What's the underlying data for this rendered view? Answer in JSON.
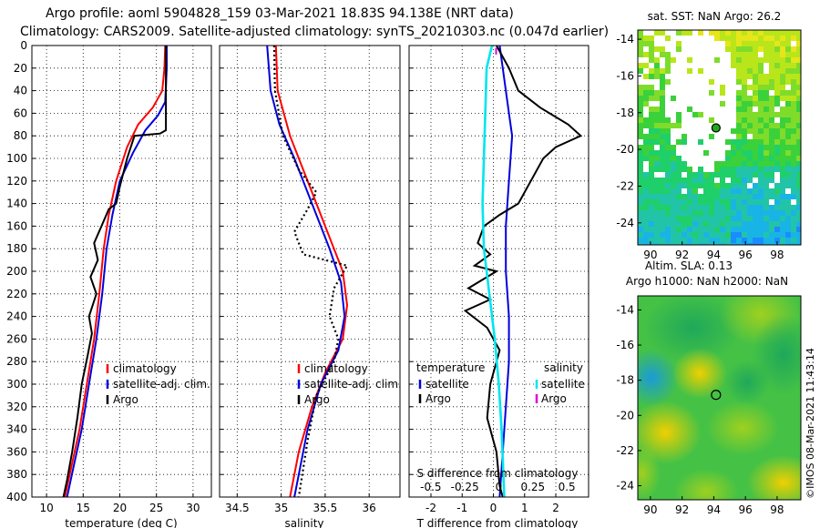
{
  "header": {
    "line1": "Argo profile: aoml 5904828_159 03-Mar-2021 18.83S 94.138E (NRT data)",
    "line2": "Climatology: CARS2009. Satellite-adjusted climatology: synTS_20210303.nc (0.047d earlier)"
  },
  "colors": {
    "climatology": "#ff0000",
    "satellite": "#0000dd",
    "argo": "#000000",
    "sal_sat": "#00e5ee",
    "sal_argo": "#dd00dd"
  },
  "depth_ticks": [
    0,
    20,
    40,
    60,
    80,
    100,
    120,
    140,
    160,
    180,
    200,
    220,
    240,
    260,
    280,
    300,
    320,
    340,
    360,
    380,
    400
  ],
  "chart_data": [
    {
      "type": "line",
      "id": "temperature",
      "xlabel": "temperature (deg C)",
      "ylabel": "depth",
      "xlim": [
        8,
        32.5
      ],
      "ylim": [
        0,
        400
      ],
      "xticks": [
        "10",
        "15",
        "20",
        "25",
        "30"
      ],
      "xtick_values": [
        10,
        15,
        20,
        25,
        30
      ],
      "legend": [
        {
          "name": "climatology",
          "color": "#ff0000"
        },
        {
          "name": "satellite-adj. clim.",
          "color": "#0000dd"
        },
        {
          "name": "Argo",
          "color": "#000000"
        }
      ],
      "series": [
        {
          "name": "climatology",
          "color": "#ff0000",
          "dash": false,
          "points": [
            [
              26.2,
              0
            ],
            [
              26.1,
              20
            ],
            [
              25.8,
              40
            ],
            [
              24.5,
              55
            ],
            [
              22.5,
              70
            ],
            [
              21,
              90
            ],
            [
              19.5,
              120
            ],
            [
              18.5,
              150
            ],
            [
              17.8,
              180
            ],
            [
              17.2,
              220
            ],
            [
              16.5,
              260
            ],
            [
              15.5,
              300
            ],
            [
              14.5,
              340
            ],
            [
              13.5,
              370
            ],
            [
              12.5,
              400
            ]
          ]
        },
        {
          "name": "satellite-adj. clim.",
          "color": "#0000dd",
          "dash": false,
          "points": [
            [
              26.4,
              0
            ],
            [
              26.4,
              20
            ],
            [
              26.2,
              50
            ],
            [
              25.2,
              62
            ],
            [
              23.5,
              75
            ],
            [
              21.8,
              95
            ],
            [
              20,
              120
            ],
            [
              19,
              150
            ],
            [
              18.2,
              180
            ],
            [
              17.6,
              220
            ],
            [
              16.8,
              260
            ],
            [
              15.8,
              300
            ],
            [
              14.8,
              340
            ],
            [
              13.8,
              370
            ],
            [
              12.8,
              400
            ]
          ]
        },
        {
          "name": "Argo",
          "color": "#000000",
          "dash": false,
          "points": [
            [
              26.3,
              0
            ],
            [
              26.3,
              20
            ],
            [
              26.3,
              50
            ],
            [
              26.3,
              75
            ],
            [
              25.5,
              78
            ],
            [
              22,
              80
            ],
            [
              21,
              100
            ],
            [
              20,
              125
            ],
            [
              19.5,
              140
            ],
            [
              18.5,
              145
            ],
            [
              17.5,
              160
            ],
            [
              16.5,
              175
            ],
            [
              17,
              190
            ],
            [
              16,
              205
            ],
            [
              16.8,
              220
            ],
            [
              15.8,
              240
            ],
            [
              16.2,
              255
            ],
            [
              15.6,
              275
            ],
            [
              14.8,
              300
            ],
            [
              14.2,
              330
            ],
            [
              13.5,
              360
            ],
            [
              12.8,
              385
            ],
            [
              12.3,
              400
            ]
          ]
        }
      ]
    },
    {
      "type": "line",
      "id": "salinity",
      "xlabel": "salinity",
      "ylabel": "depth",
      "xlim": [
        34.3,
        36.35
      ],
      "ylim": [
        0,
        400
      ],
      "xticks": [
        "34.5",
        "35",
        "35.5",
        "36"
      ],
      "xtick_values": [
        34.5,
        35,
        35.5,
        36
      ],
      "legend": [
        {
          "name": "climatology",
          "color": "#ff0000"
        },
        {
          "name": "satellite-adj. clim.",
          "color": "#0000dd"
        },
        {
          "name": "Argo",
          "color": "#000000"
        }
      ],
      "series": [
        {
          "name": "climatology",
          "color": "#ff0000",
          "dash": false,
          "points": [
            [
              34.94,
              0
            ],
            [
              34.96,
              40
            ],
            [
              35.1,
              80
            ],
            [
              35.3,
              120
            ],
            [
              35.5,
              160
            ],
            [
              35.7,
              200
            ],
            [
              35.75,
              230
            ],
            [
              35.7,
              260
            ],
            [
              35.5,
              290
            ],
            [
              35.35,
              320
            ],
            [
              35.2,
              360
            ],
            [
              35.1,
              400
            ]
          ]
        },
        {
          "name": "satellite-adj. clim.",
          "color": "#0000dd",
          "dash": false,
          "points": [
            [
              34.84,
              0
            ],
            [
              34.88,
              40
            ],
            [
              34.98,
              70
            ],
            [
              35.15,
              100
            ],
            [
              35.35,
              140
            ],
            [
              35.55,
              180
            ],
            [
              35.68,
              210
            ],
            [
              35.72,
              240
            ],
            [
              35.65,
              270
            ],
            [
              35.45,
              300
            ],
            [
              35.3,
              340
            ],
            [
              35.15,
              400
            ]
          ]
        },
        {
          "name": "Argo",
          "color": "#000000",
          "dash": true,
          "points": [
            [
              34.92,
              0
            ],
            [
              34.93,
              40
            ],
            [
              35.02,
              80
            ],
            [
              35.2,
              110
            ],
            [
              35.4,
              130
            ],
            [
              35.3,
              145
            ],
            [
              35.15,
              165
            ],
            [
              35.25,
              185
            ],
            [
              35.75,
              195
            ],
            [
              35.6,
              215
            ],
            [
              35.55,
              240
            ],
            [
              35.65,
              260
            ],
            [
              35.6,
              280
            ],
            [
              35.4,
              310
            ],
            [
              35.3,
              350
            ],
            [
              35.2,
              400
            ]
          ]
        }
      ]
    },
    {
      "type": "line",
      "id": "difference",
      "xlabel": "T difference from climatology",
      "xlabel_top": "S difference from climatology",
      "xlim": [
        -2.7,
        3.05
      ],
      "ylim": [
        0,
        400
      ],
      "xticks": [
        "-2",
        "-1",
        "0",
        "1",
        "2"
      ],
      "xtick_values": [
        -2,
        -1,
        0,
        1,
        2
      ],
      "top_xticks": [
        "-0.5",
        "-0.25",
        "0",
        "0.25",
        "0.5"
      ],
      "top_xtick_values": [
        -0.5,
        -0.25,
        0,
        0.25,
        0.5
      ],
      "s_xlim": [
        -0.66,
        0.66
      ],
      "legend_temperature": {
        "heading": "temperature",
        "items": [
          {
            "name": "satellite",
            "color": "#0000dd"
          },
          {
            "name": "Argo",
            "color": "#000000"
          }
        ]
      },
      "legend_salinity": {
        "heading": "salinity",
        "items": [
          {
            "name": "satellite",
            "color": "#00e5ee"
          },
          {
            "name": "Argo",
            "color": "#dd00dd"
          }
        ]
      },
      "series": [
        {
          "name": "temperature satellite",
          "color": "#0000dd",
          "scale": "T",
          "points": [
            [
              0.2,
              0
            ],
            [
              0.3,
              20
            ],
            [
              0.4,
              40
            ],
            [
              0.5,
              60
            ],
            [
              0.6,
              80
            ],
            [
              0.5,
              120
            ],
            [
              0.4,
              160
            ],
            [
              0.4,
              200
            ],
            [
              0.5,
              240
            ],
            [
              0.5,
              280
            ],
            [
              0.4,
              320
            ],
            [
              0.3,
              360
            ],
            [
              0.2,
              400
            ]
          ]
        },
        {
          "name": "temperature Argo",
          "color": "#000000",
          "scale": "T",
          "points": [
            [
              0.1,
              0
            ],
            [
              0.5,
              20
            ],
            [
              0.8,
              40
            ],
            [
              1.5,
              55
            ],
            [
              2.4,
              70
            ],
            [
              2.8,
              80
            ],
            [
              2,
              90
            ],
            [
              1.6,
              100
            ],
            [
              1.2,
              120
            ],
            [
              0.8,
              140
            ],
            [
              0.2,
              150
            ],
            [
              -0.3,
              160
            ],
            [
              -0.5,
              175
            ],
            [
              -0.1,
              185
            ],
            [
              -0.6,
              195
            ],
            [
              0.1,
              200
            ],
            [
              -0.8,
              215
            ],
            [
              -0.1,
              225
            ],
            [
              -0.9,
              235
            ],
            [
              -0.2,
              250
            ],
            [
              0.2,
              270
            ],
            [
              -0.1,
              300
            ],
            [
              -0.2,
              330
            ],
            [
              0.1,
              360
            ],
            [
              0.2,
              390
            ],
            [
              0.3,
              400
            ]
          ]
        },
        {
          "name": "salinity satellite",
          "color": "#00e5ee",
          "scale": "S",
          "points": [
            [
              -0.05,
              0
            ],
            [
              -0.09,
              20
            ],
            [
              -0.1,
              60
            ],
            [
              -0.11,
              100
            ],
            [
              -0.12,
              140
            ],
            [
              -0.11,
              180
            ],
            [
              -0.07,
              220
            ],
            [
              -0.03,
              260
            ],
            [
              0,
              300
            ],
            [
              0.02,
              340
            ],
            [
              0.04,
              400
            ]
          ]
        },
        {
          "name": "salinity Argo",
          "color": "#dd00dd",
          "scale": "S",
          "points": [
            [
              -0.02,
              2
            ],
            [
              -0.02,
              8
            ]
          ]
        }
      ]
    }
  ],
  "maps": {
    "sst": {
      "title": "sat. SST: NaN Argo: 26.2",
      "yticks": [
        "-14",
        "-16",
        "-18",
        "-20",
        "-22",
        "-24"
      ],
      "ytick_values": [
        -14,
        -16,
        -18,
        -20,
        -22,
        -24
      ],
      "xticks": [
        "90",
        "92",
        "94",
        "96",
        "98"
      ],
      "xtick_values": [
        90,
        92,
        94,
        96,
        98
      ],
      "lon_range": [
        89.2,
        99.5
      ],
      "lat_range": [
        -13.5,
        -25.2
      ],
      "marker": {
        "lon": 94.14,
        "lat": -18.83
      }
    },
    "sla": {
      "title_line1": "Altim. SLA: 0.13",
      "title_line2": "Argo h1000: NaN h2000: NaN",
      "yticks": [
        "-14",
        "-16",
        "-18",
        "-20",
        "-22",
        "-24"
      ],
      "ytick_values": [
        -14,
        -16,
        -18,
        -20,
        -22,
        -24
      ],
      "xticks": [
        "90",
        "92",
        "94",
        "96",
        "98"
      ],
      "xtick_values": [
        90,
        92,
        94,
        96,
        98
      ],
      "lon_range": [
        89.2,
        99.5
      ],
      "lat_range": [
        -13.2,
        -24.8
      ],
      "marker": {
        "lon": 94.14,
        "lat": -18.83
      }
    }
  },
  "watermark": "©IMOS 08-Mar-2021 11:43:14"
}
